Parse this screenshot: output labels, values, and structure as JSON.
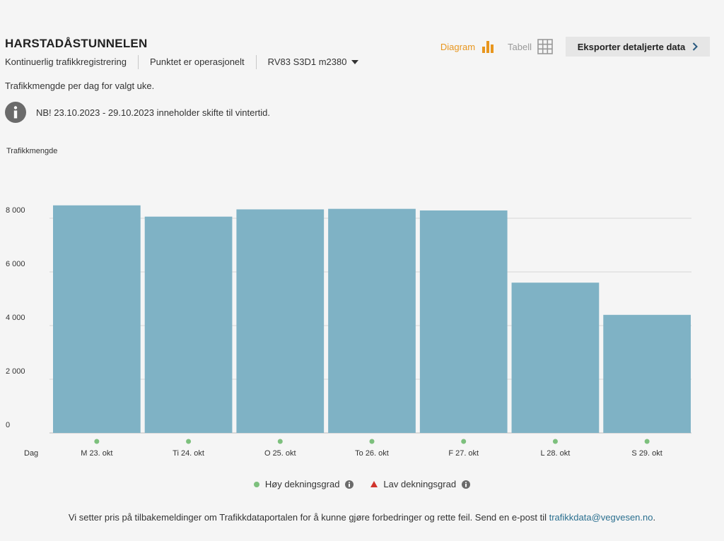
{
  "header": {
    "title": "HARSTADÅSTUNNELEN",
    "meta": [
      "Kontinuerlig trafikkregistrering",
      "Punktet er operasjonelt"
    ],
    "road_ref": "RV83 S3D1 m2380"
  },
  "view_toggle": {
    "diagram_label": "Diagram",
    "table_label": "Tabell",
    "export_label": "Eksporter detaljerte data"
  },
  "description": "Trafikkmengde per dag for valgt uke.",
  "notice": "NB! 23.10.2023 - 29.10.2023 inneholder skifte til vintertid.",
  "legend": {
    "high": "Høy dekningsgrad",
    "low": "Lav dekningsgrad"
  },
  "footer": {
    "text": "Vi setter pris på tilbakemeldinger om Trafikkdataportalen for å kunne gjøre forbedringer og rette feil. Send en e-post til ",
    "email": "trafikkdata@vegvesen.no",
    "end": "."
  },
  "colors": {
    "bar": "#7fb2c5",
    "accent": "#e8961e",
    "high_coverage": "#7dc07d",
    "low_coverage": "#d0342c"
  },
  "chart_data": {
    "type": "bar",
    "ylabel": "Trafikkmengde",
    "xlabel": "Dag",
    "ylim": [
      0,
      10000
    ],
    "yticks": [
      0,
      2000,
      4000,
      6000,
      8000
    ],
    "ytick_labels": [
      "0",
      "2 000",
      "4 000",
      "6 000",
      "8 000"
    ],
    "grid": true,
    "categories": [
      "M 23. okt",
      "Ti 24. okt",
      "O 25. okt",
      "To 26. okt",
      "F 27. okt",
      "L 28. okt",
      "S 29. okt"
    ],
    "values": [
      8480,
      8060,
      8330,
      8350,
      8290,
      5600,
      4400
    ],
    "coverage": [
      "high",
      "high",
      "high",
      "high",
      "high",
      "high",
      "high"
    ]
  }
}
